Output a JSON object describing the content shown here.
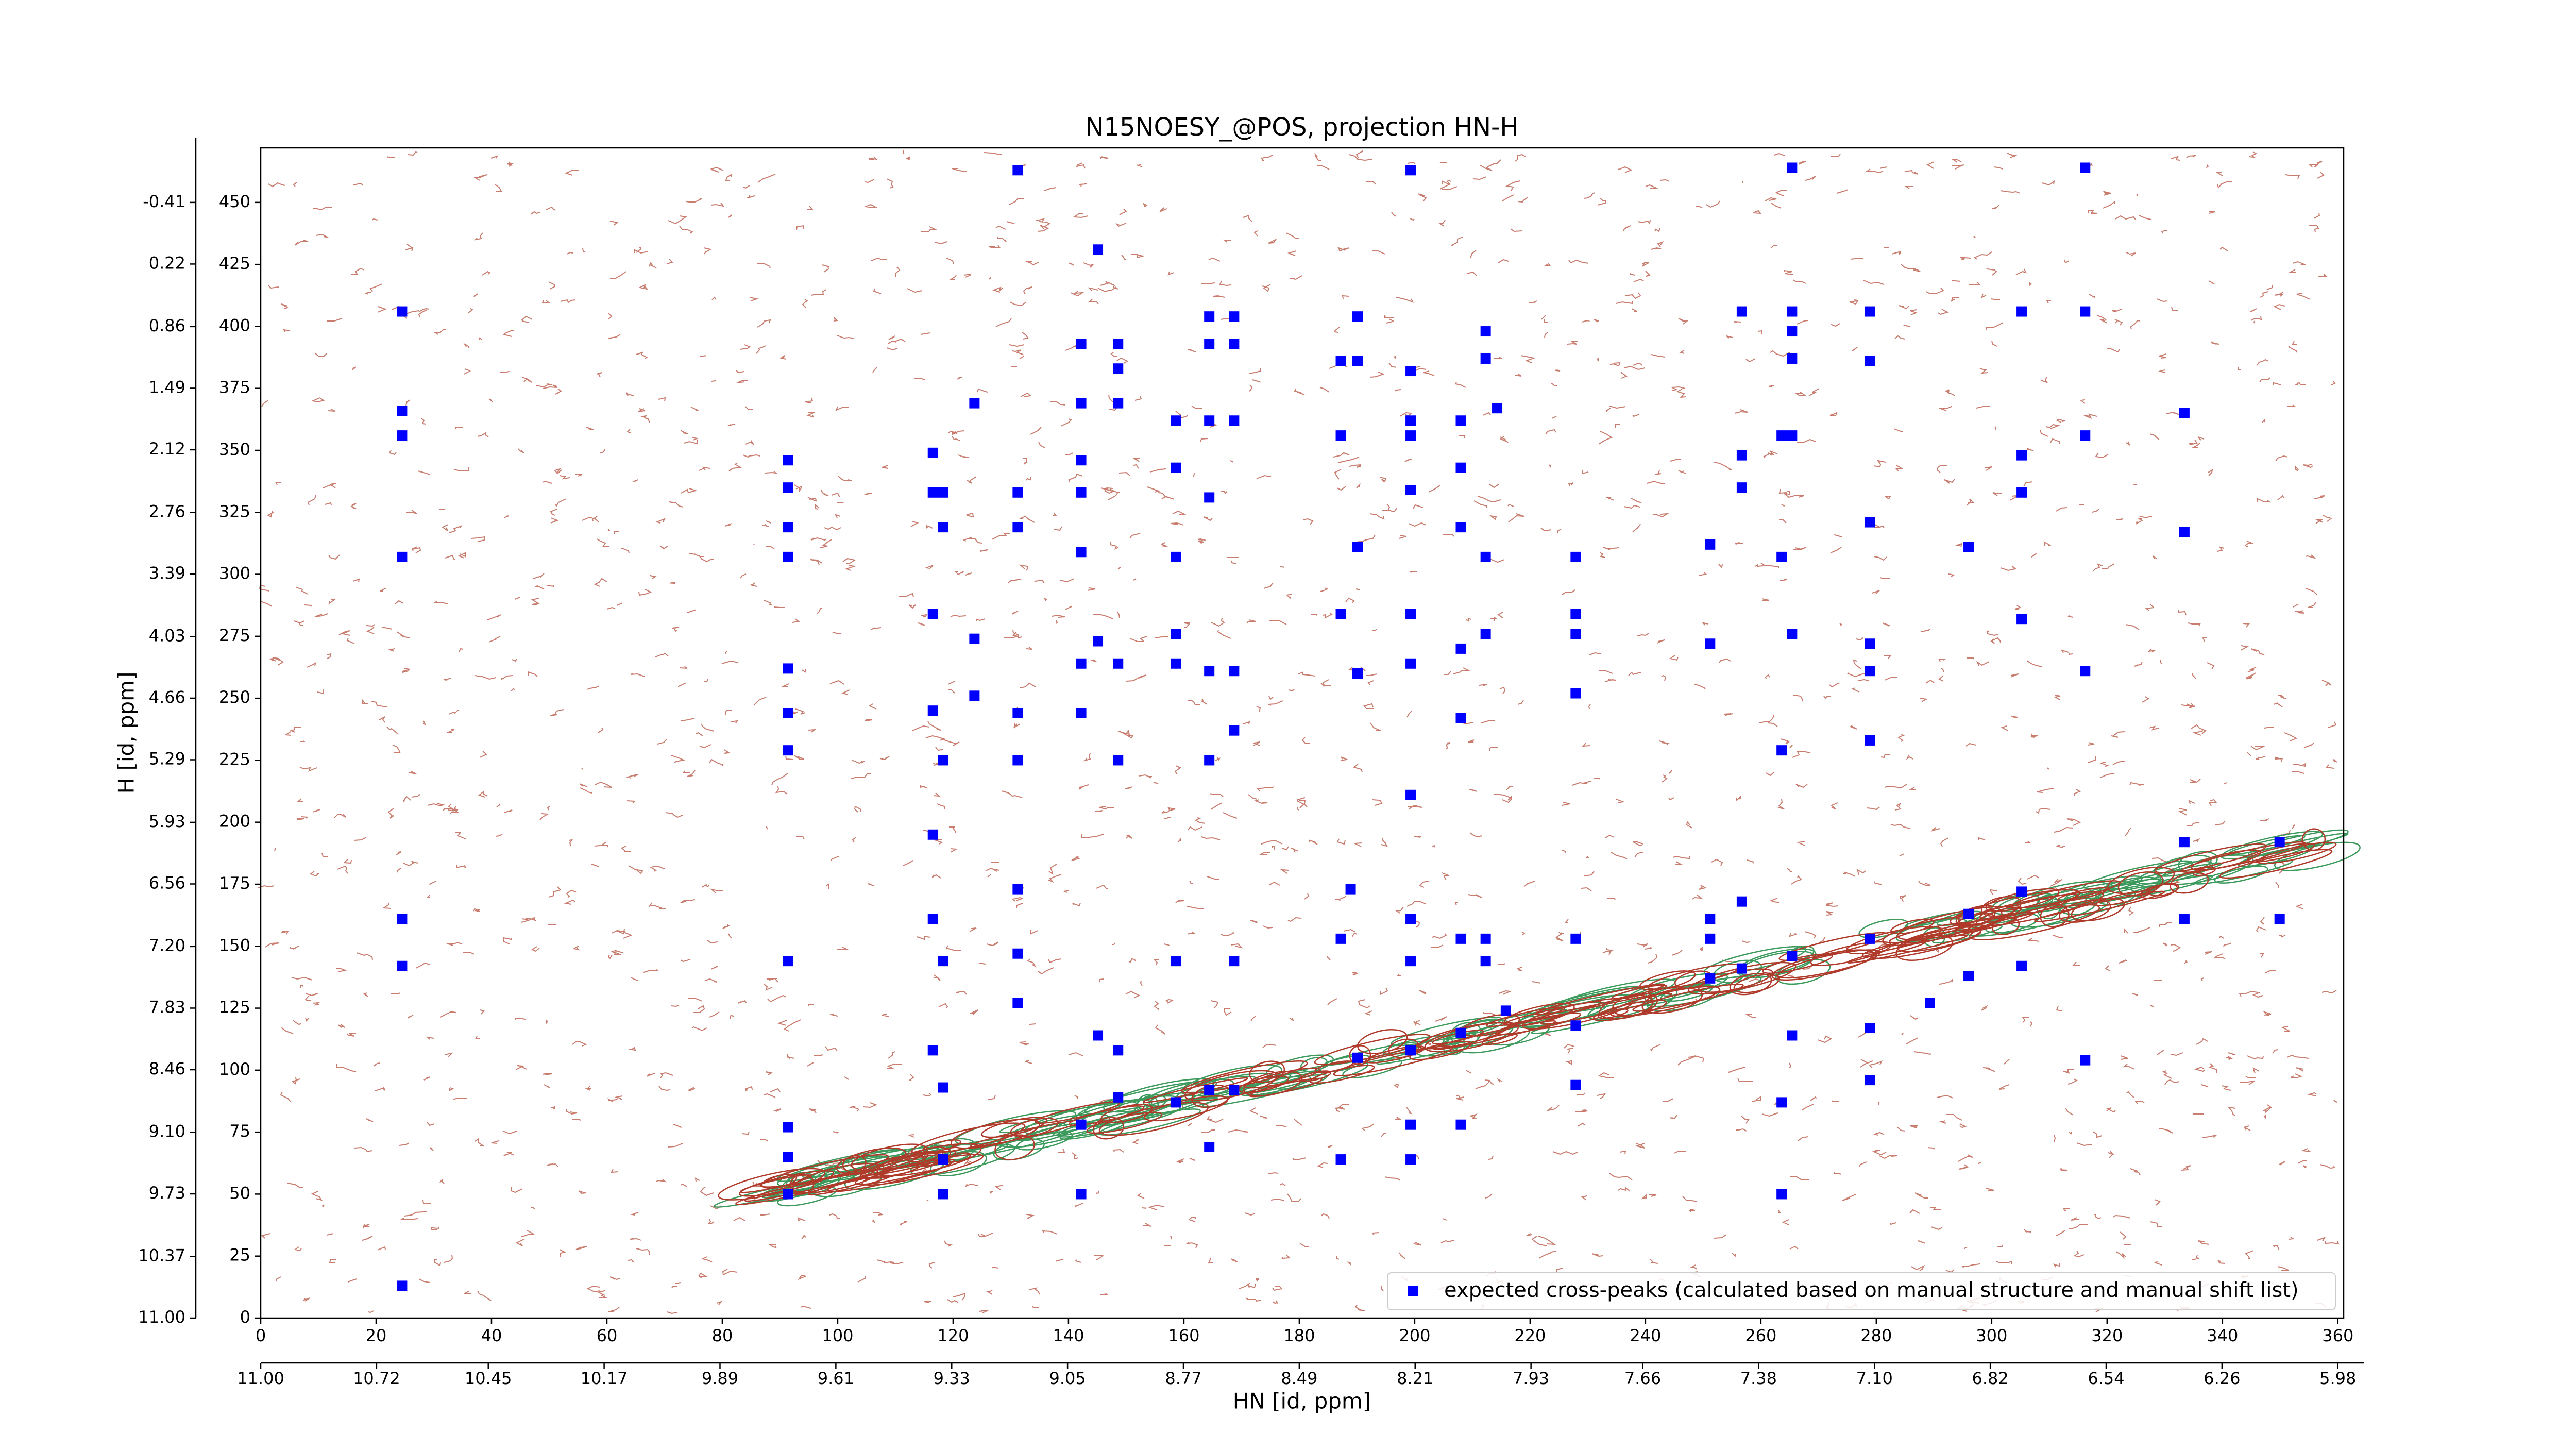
{
  "chart_data": {
    "type": "scatter",
    "title": "N15NOESY_@POS, projection HN-H",
    "xlabel": "HN [id, ppm]",
    "ylabel": "H [id, ppm]",
    "xlim": [
      0,
      361
    ],
    "ylim": [
      0,
      472
    ],
    "xticks": [
      0,
      20,
      40,
      60,
      80,
      100,
      120,
      140,
      160,
      180,
      200,
      220,
      240,
      260,
      280,
      300,
      320,
      340,
      360
    ],
    "yticks": [
      0,
      25,
      50,
      75,
      100,
      125,
      150,
      175,
      200,
      225,
      250,
      275,
      300,
      325,
      350,
      375,
      400,
      425,
      450
    ],
    "x2lim": [
      11.0,
      5.966
    ],
    "x2ticks": [
      {
        "value": 11,
        "label": "11.00"
      },
      10.72,
      10.45,
      10.17,
      9.89,
      9.61,
      9.33,
      9.05,
      8.77,
      8.49,
      8.21,
      7.93,
      7.66,
      7.38,
      {
        "value": 7.1,
        "label": "7.10"
      },
      6.82,
      6.54,
      6.26,
      5.98
    ],
    "y2lim": [
      11.0,
      -0.968
    ],
    "y2ticks": [
      {
        "value": 11,
        "label": "11.00"
      },
      10.37,
      9.73,
      {
        "value": 9.1,
        "label": "9.10"
      },
      8.46,
      7.83,
      {
        "value": 7.2,
        "label": "7.20"
      },
      6.56,
      5.93,
      5.29,
      4.66,
      4.03,
      3.39,
      2.76,
      2.12,
      1.49,
      0.86,
      0.22,
      -0.41
    ],
    "legend": "lower right",
    "series": [
      {
        "name": "expected cross-peaks (calculated based on manual structure and manual shift list)",
        "color": "#0000ff",
        "x": [
          24.5,
          24.5,
          24.5,
          24.5,
          24.5,
          24.5,
          24.5,
          91.4,
          91.4,
          91.4,
          91.4,
          91.4,
          91.4,
          91.4,
          91.4,
          91.4,
          91.4,
          91.4,
          116.5,
          116.5,
          118.3,
          118.3,
          116.5,
          116.5,
          118.3,
          116.5,
          116.5,
          118.3,
          116.5,
          118.3,
          118.3,
          118.3,
          123.7,
          123.7,
          123.7,
          131.2,
          131.2,
          131.2,
          131.2,
          131.2,
          131.2,
          131.2,
          131.2,
          142.2,
          142.2,
          142.2,
          142.2,
          142.2,
          142.2,
          142.2,
          142.2,
          142.2,
          145.1,
          145.1,
          145.1,
          148.6,
          148.6,
          148.6,
          148.6,
          148.6,
          148.6,
          148.6,
          158.6,
          158.6,
          158.6,
          158.6,
          158.6,
          158.6,
          158.6,
          164.4,
          168.7,
          164.4,
          168.7,
          164.4,
          168.7,
          164.4,
          164.4,
          168.7,
          164.4,
          168.7,
          164.4,
          168.7,
          164.4,
          168.7,
          187.2,
          190.1,
          190.1,
          187.2,
          190.1,
          187.2,
          190.1,
          187.2,
          190.1,
          187.2,
          188.9,
          199.3,
          199.3,
          199.3,
          199.3,
          199.3,
          199.3,
          199.3,
          199.3,
          199.3,
          199.3,
          199.3,
          199.3,
          199.3,
          208,
          208,
          208,
          208,
          208,
          208,
          208,
          208,
          212.3,
          212.3,
          214.3,
          212.3,
          212.3,
          212.3,
          212.3,
          215.8,
          227.9,
          227.9,
          227.9,
          227.9,
          227.9,
          227.9,
          227.9,
          251.2,
          251.2,
          251.2,
          251.2,
          251.2,
          256.7,
          256.7,
          256.7,
          256.7,
          256.7,
          265.4,
          265.4,
          265.4,
          265.4,
          263.6,
          265.4,
          263.6,
          265.4,
          263.6,
          265.4,
          265.4,
          263.6,
          263.6,
          278.9,
          278.9,
          278.9,
          278.9,
          278.9,
          278.9,
          278.9,
          278.9,
          278.9,
          296,
          296,
          296,
          289.3,
          305.2,
          305.2,
          305.2,
          305.2,
          305.2,
          305.2,
          316.2,
          316.2,
          316.2,
          316.2,
          316.2,
          333.4,
          333.4,
          333.4,
          333.4,
          349.9,
          349.9
        ],
        "y": [
          406,
          366,
          356,
          307,
          161,
          142,
          13,
          346,
          335,
          319,
          307,
          262,
          244,
          229,
          144,
          77,
          65,
          50,
          349,
          333,
          333,
          319,
          284,
          245,
          225,
          195,
          161,
          144,
          108,
          93,
          64,
          50,
          369,
          274,
          251,
          463,
          333,
          319,
          244,
          225,
          173,
          147,
          127,
          393,
          369,
          346,
          333,
          309,
          264,
          244,
          78,
          50,
          431,
          273,
          114,
          393,
          383,
          369,
          264,
          225,
          108,
          89,
          362,
          343,
          307,
          276,
          264,
          144,
          87,
          404,
          404,
          393,
          393,
          362,
          362,
          331,
          261,
          261,
          225,
          237,
          92,
          92,
          69,
          144,
          386,
          386,
          404,
          356,
          311,
          284,
          260,
          153,
          105,
          64,
          173,
          463,
          382,
          362,
          356,
          334,
          284,
          264,
          211,
          161,
          144,
          108,
          78,
          64,
          362,
          343,
          319,
          270,
          242,
          153,
          115,
          78,
          398,
          387,
          367,
          307,
          276,
          153,
          144,
          124,
          307,
          284,
          276,
          252,
          153,
          118,
          94,
          312,
          272,
          161,
          153,
          137,
          406,
          348,
          335,
          168,
          141,
          464,
          406,
          398,
          387,
          356,
          356,
          307,
          276,
          229,
          146,
          114,
          87,
          50,
          406,
          386,
          321,
          272,
          261,
          233,
          153,
          117,
          96,
          311,
          138,
          163,
          127,
          406,
          348,
          333,
          282,
          142,
          172,
          464,
          406,
          356,
          261,
          104,
          365,
          317,
          192,
          161,
          161,
          192
        ]
      }
    ]
  }
}
